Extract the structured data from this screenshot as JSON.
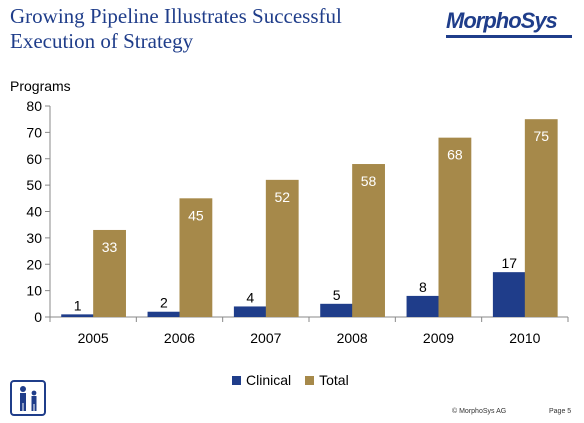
{
  "header": {
    "title_line1": "Growing Pipeline Illustrates Successful",
    "title_line2": "Execution of Strategy",
    "logo_text": "MorphoSys"
  },
  "footer": {
    "copyright": "© MorphoSys AG",
    "page": "Page 5"
  },
  "colors": {
    "clinical": "#1f3d8a",
    "total": "#a6894a",
    "title": "#1f3d8a"
  },
  "icons": {
    "logo": "morphosys-logo",
    "corner": "clinical-figures-icon"
  },
  "chart_data": {
    "type": "bar",
    "title": "",
    "ylabel": "Programs",
    "xlabel": "",
    "categories": [
      "2005",
      "2006",
      "2007",
      "2008",
      "2009",
      "2010"
    ],
    "series": [
      {
        "name": "Clinical",
        "values": [
          1,
          2,
          4,
          5,
          8,
          17
        ]
      },
      {
        "name": "Total",
        "values": [
          33,
          45,
          52,
          58,
          68,
          75
        ]
      }
    ],
    "ylim": [
      0,
      80
    ],
    "yticks": [
      0,
      10,
      20,
      30,
      40,
      50,
      60,
      70,
      80
    ],
    "grid": false,
    "legend": "bottom"
  }
}
